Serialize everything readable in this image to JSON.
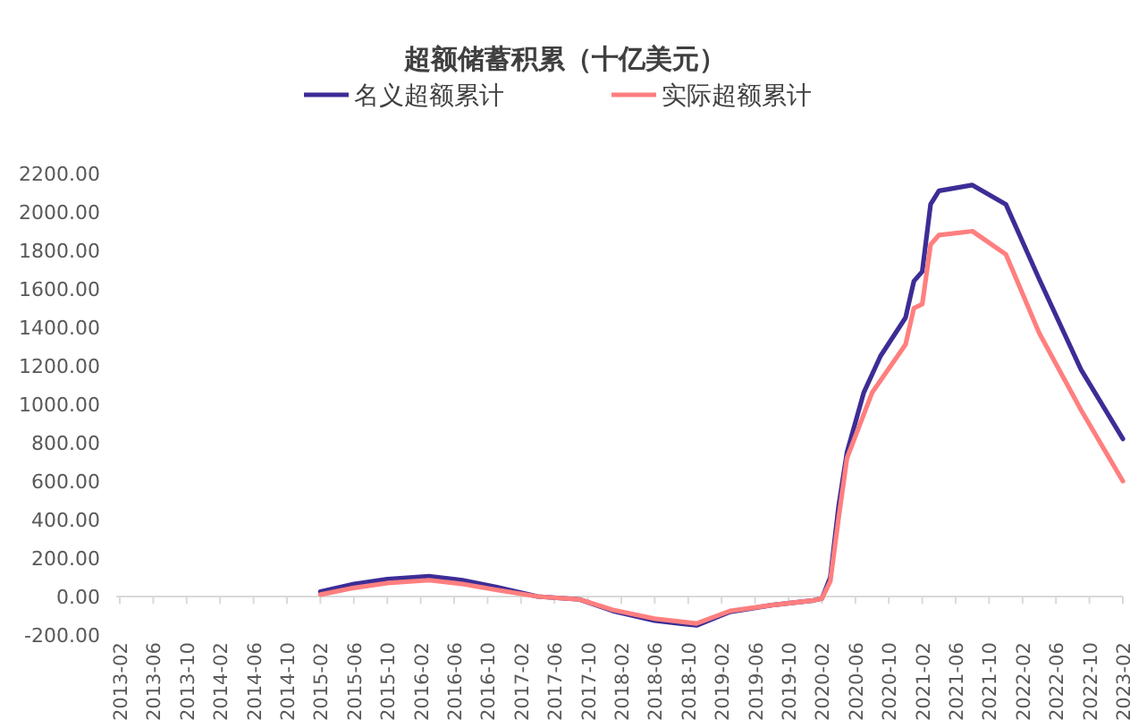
{
  "chart_data": {
    "type": "line",
    "title": "超额储蓄积累（十亿美元）",
    "legend": "top",
    "grid": false,
    "marker": "none",
    "line_style": "solid",
    "xlim": [
      "2013-02",
      "2023-02"
    ],
    "xticks": [
      "2013-02",
      "2013-06",
      "2013-10",
      "2014-02",
      "2014-06",
      "2014-10",
      "2015-02",
      "2015-06",
      "2015-10",
      "2016-02",
      "2016-06",
      "2016-10",
      "2017-02",
      "2017-06",
      "2017-10",
      "2018-02",
      "2018-06",
      "2018-10",
      "2019-02",
      "2019-06",
      "2019-10",
      "2020-02",
      "2020-06",
      "2020-10",
      "2021-02",
      "2021-06",
      "2021-10",
      "2022-02",
      "2022-06",
      "2022-10",
      "2023-02"
    ],
    "ylim": [
      -200,
      2200
    ],
    "yticks": [
      {
        "value": -200,
        "label": "-200.00"
      },
      {
        "value": 0,
        "label": "0.00"
      },
      {
        "value": 200,
        "label": "200.00"
      },
      {
        "value": 400,
        "label": "400.00"
      },
      {
        "value": 600,
        "label": "600.00"
      },
      {
        "value": 800,
        "label": "800.00"
      },
      {
        "value": 1000,
        "label": "1000.00"
      },
      {
        "value": 1200,
        "label": "1200.00"
      },
      {
        "value": 1400,
        "label": "1400.00"
      },
      {
        "value": 1600,
        "label": "1600.00"
      },
      {
        "value": 1800,
        "label": "1800.00"
      },
      {
        "value": 2000,
        "label": "2000.00"
      },
      {
        "value": 2200,
        "label": "2200.00"
      }
    ],
    "series": [
      {
        "name": "名义超额累计",
        "color": "#3c2d96",
        "x": [
          "2015-02",
          "2015-06",
          "2015-10",
          "2016-03",
          "2016-07",
          "2016-11",
          "2017-04",
          "2017-09",
          "2018-01",
          "2018-06",
          "2018-11",
          "2019-03",
          "2019-08",
          "2020-01",
          "2020-02",
          "2020-03",
          "2020-04",
          "2020-05",
          "2020-07",
          "2020-09",
          "2020-12",
          "2021-01",
          "2021-02",
          "2021-03",
          "2021-04",
          "2021-08",
          "2021-12",
          "2022-04",
          "2022-09",
          "2023-02"
        ],
        "values": [
          25,
          65,
          90,
          105,
          85,
          50,
          0,
          -15,
          -75,
          -125,
          -150,
          -80,
          -45,
          -20,
          -10,
          100,
          470,
          750,
          1060,
          1250,
          1450,
          1640,
          1690,
          2040,
          2110,
          2140,
          2040,
          1650,
          1180,
          820
        ]
      },
      {
        "name": "实际超额累计",
        "color": "#ff7f7f",
        "x": [
          "2015-02",
          "2015-06",
          "2015-10",
          "2016-03",
          "2016-07",
          "2016-11",
          "2017-04",
          "2017-09",
          "2018-01",
          "2018-06",
          "2018-11",
          "2019-03",
          "2019-08",
          "2020-01",
          "2020-02",
          "2020-03",
          "2020-04",
          "2020-05",
          "2020-08",
          "2020-12",
          "2021-01",
          "2021-02",
          "2021-03",
          "2021-04",
          "2021-08",
          "2021-12",
          "2022-04",
          "2022-09",
          "2023-02"
        ],
        "values": [
          10,
          45,
          70,
          85,
          65,
          35,
          0,
          -15,
          -70,
          -115,
          -140,
          -75,
          -45,
          -20,
          -10,
          80,
          410,
          720,
          1060,
          1310,
          1500,
          1520,
          1830,
          1880,
          1900,
          1780,
          1370,
          970,
          600
        ]
      }
    ]
  }
}
